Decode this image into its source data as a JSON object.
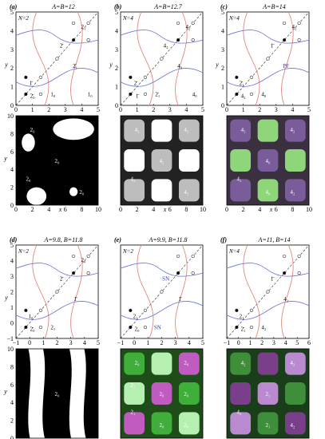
{
  "figure": {
    "panels": [
      {
        "id": "a",
        "letter": "(a)",
        "params": "A=B=12",
        "n_label": "N=2",
        "phase": {
          "xlim": [
            0,
            5
          ],
          "ylim": [
            0,
            5
          ],
          "xticks": [
            "0",
            "1",
            "2",
            "3",
            "4",
            "5"
          ],
          "yticks": [
            "0",
            "1",
            "2",
            "3",
            "4",
            "5"
          ],
          "cycle_labels": [
            "1̄",
            "2̄",
            "2̄₁",
            "2̄₀",
            "1₀",
            "2₁",
            "1₀"
          ]
        },
        "pattern": {
          "xlim": [
            0,
            10
          ],
          "ylim": [
            0,
            10
          ],
          "xticks": [
            "0",
            "2",
            "4",
            "6",
            "8",
            "10"
          ],
          "yticks": [
            "0",
            "2",
            "4",
            "6",
            "8",
            "10"
          ],
          "region_labels": [
            "2₀",
            "2₀",
            "2₀",
            "2₀"
          ],
          "scheme": "bw"
        }
      },
      {
        "id": "b",
        "letter": "(b)",
        "params": "A=B=12.7",
        "n_label": "N=4",
        "phase": {
          "xlim": [
            0,
            5
          ],
          "ylim": [
            0,
            5
          ],
          "xticks": [
            "0",
            "1",
            "2",
            "3",
            "4",
            "5"
          ],
          "yticks": [
            "0",
            "1",
            "2",
            "3",
            "4",
            "5"
          ],
          "cycle_labels": [
            "2̄",
            "4₂",
            "4₀",
            "1̄",
            "2̄₁",
            "4₂",
            "4₀"
          ]
        },
        "pattern": {
          "xlim": [
            0,
            10
          ],
          "ylim": [
            0,
            10
          ],
          "xticks": [
            "0",
            "2",
            "4",
            "6",
            "8",
            "10"
          ],
          "yticks": [],
          "region_labels": [
            "4₂",
            "4₂",
            "4₂",
            "4₂",
            "4₂",
            "4₂"
          ],
          "scheme": "gray"
        }
      },
      {
        "id": "c",
        "letter": "(c)",
        "params": "A=B=14",
        "n_label": "N=4",
        "phase": {
          "xlim": [
            0,
            5
          ],
          "ylim": [
            0,
            5
          ],
          "xticks": [
            "0",
            "1",
            "2",
            "3",
            "4",
            "5"
          ],
          "yticks": [
            "0",
            "1",
            "2",
            "3",
            "4",
            "5"
          ],
          "cycle_labels": [
            "2̄₁",
            "1̄",
            "PF",
            "4₂",
            "4₀",
            "4₂"
          ]
        },
        "pattern": {
          "xlim": [
            0,
            10
          ],
          "ylim": [
            0,
            10
          ],
          "xticks": [
            "0",
            "2",
            "4",
            "6",
            "8",
            "10"
          ],
          "yticks": [],
          "region_labels": [
            "4₂",
            "4₀",
            "4₂",
            "4₂",
            "4₀",
            "4₂"
          ],
          "scheme": "purple-green"
        }
      },
      {
        "id": "d",
        "letter": "(d)",
        "params": "A=9.8, B=11.8",
        "n_label": "N=2",
        "phase": {
          "xlim": [
            -1,
            5
          ],
          "ylim": [
            -1,
            5
          ],
          "xticks": [
            "−1",
            "0",
            "1",
            "2",
            "3",
            "4",
            "5"
          ],
          "yticks": [
            "−1",
            "0",
            "1",
            "2",
            "3",
            "4",
            "5"
          ],
          "cycle_labels": [
            "1₀",
            "2̄",
            "1̄",
            "2̄₀",
            "2₁",
            "2₀"
          ]
        },
        "pattern": {
          "xlim": [
            0,
            10
          ],
          "ylim": [
            0,
            10
          ],
          "xticks": [
            "0",
            "2",
            "4",
            "6",
            "8",
            "10"
          ],
          "yticks": [
            "0",
            "2",
            "4",
            "6",
            "8",
            "10"
          ],
          "region_labels": [
            "2₀",
            "2₀"
          ],
          "scheme": "bw-stripes"
        }
      },
      {
        "id": "e",
        "letter": "(e)",
        "params": "A=9.9, B=11.8",
        "n_label": "N=2",
        "phase": {
          "xlim": [
            -1,
            5
          ],
          "ylim": [
            -1,
            5
          ],
          "xticks": [
            "−1",
            "0",
            "1",
            "2",
            "3",
            "4",
            "5"
          ],
          "yticks": [],
          "cycle_labels": [
            "2₁",
            "SN",
            "1̄",
            "2₀",
            "SN"
          ]
        },
        "pattern": {
          "xlim": [
            0,
            10
          ],
          "ylim": [
            0,
            10
          ],
          "xticks": [
            "0",
            "2",
            "4",
            "6",
            "8",
            "10"
          ],
          "yticks": [],
          "region_labels": [
            "2₀",
            "2₀",
            "2₁",
            "2₀",
            "2₀",
            "2₀",
            "2₁",
            "2₀"
          ],
          "scheme": "green-magenta"
        }
      },
      {
        "id": "f",
        "letter": "(f)",
        "params": "A=11, B=14",
        "n_label": "N=4",
        "phase": {
          "xlim": [
            -1,
            6
          ],
          "ylim": [
            -1,
            6
          ],
          "xticks": [
            "−1",
            "0",
            "1",
            "2",
            "3",
            "4",
            "5",
            "6"
          ],
          "yticks": [],
          "cycle_labels": [
            "2₁",
            "1̄",
            "4₂",
            "2̄₁",
            "4₂"
          ]
        },
        "pattern": {
          "xlim": [
            0,
            10
          ],
          "ylim": [
            0,
            10
          ],
          "xticks": [
            "0",
            "2",
            "4",
            "6",
            "8",
            "10"
          ],
          "yticks": [],
          "region_labels": [
            "4₂",
            "2₁",
            "4₂",
            "4₂",
            "2₁",
            "4₂"
          ],
          "scheme": "green-purple"
        }
      }
    ],
    "axis_labels": {
      "x": "x",
      "y": "y"
    },
    "colors": {
      "nullcline_red": "#e07a6a",
      "nullcline_blue": "#6a72d6",
      "diagonal": "#444444",
      "arrow_green": "#7ec850"
    }
  }
}
